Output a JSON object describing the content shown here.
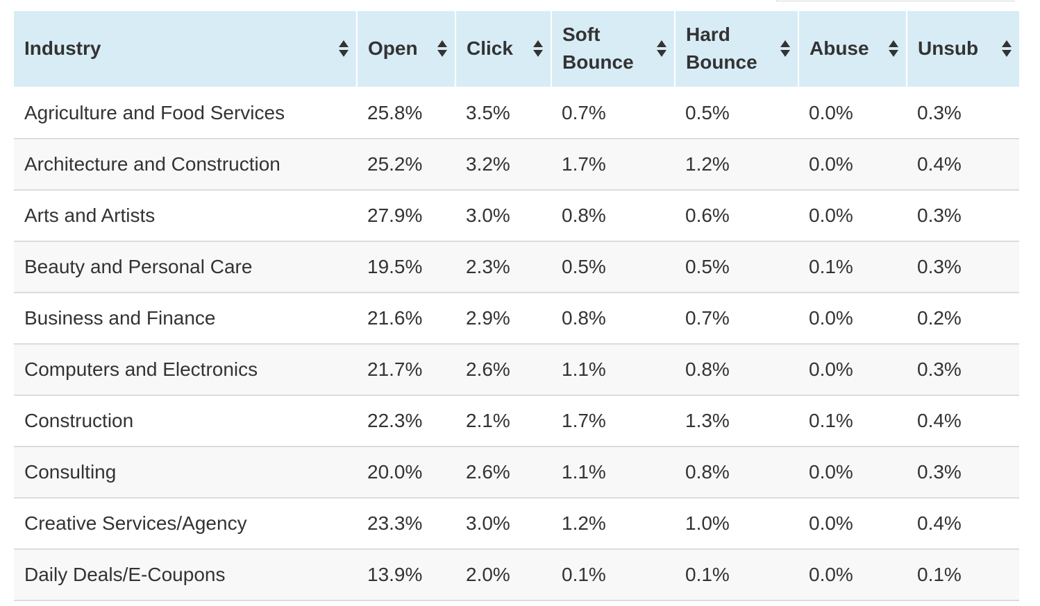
{
  "table": {
    "columns": [
      {
        "key": "industry",
        "label": "Industry"
      },
      {
        "key": "open",
        "label": "Open"
      },
      {
        "key": "click",
        "label": "Click"
      },
      {
        "key": "soft_bounce",
        "label": "Soft Bounce"
      },
      {
        "key": "hard_bounce",
        "label": "Hard Bounce"
      },
      {
        "key": "abuse",
        "label": "Abuse"
      },
      {
        "key": "unsub",
        "label": "Unsub"
      }
    ],
    "sort_icon": "sort-up-down-icon",
    "rows": [
      [
        "Agriculture and Food Services",
        "25.8%",
        "3.5%",
        "0.7%",
        "0.5%",
        "0.0%",
        "0.3%"
      ],
      [
        "Architecture and Construction",
        "25.2%",
        "3.2%",
        "1.7%",
        "1.2%",
        "0.0%",
        "0.4%"
      ],
      [
        "Arts and Artists",
        "27.9%",
        "3.0%",
        "0.8%",
        "0.6%",
        "0.0%",
        "0.3%"
      ],
      [
        "Beauty and Personal Care",
        "19.5%",
        "2.3%",
        "0.5%",
        "0.5%",
        "0.1%",
        "0.3%"
      ],
      [
        "Business and Finance",
        "21.6%",
        "2.9%",
        "0.8%",
        "0.7%",
        "0.0%",
        "0.2%"
      ],
      [
        "Computers and Electronics",
        "21.7%",
        "2.6%",
        "1.1%",
        "0.8%",
        "0.0%",
        "0.3%"
      ],
      [
        "Construction",
        "22.3%",
        "2.1%",
        "1.7%",
        "1.3%",
        "0.1%",
        "0.4%"
      ],
      [
        "Consulting",
        "20.0%",
        "2.6%",
        "1.1%",
        "0.8%",
        "0.0%",
        "0.3%"
      ],
      [
        "Creative Services/Agency",
        "23.3%",
        "3.0%",
        "1.2%",
        "1.0%",
        "0.0%",
        "0.4%"
      ],
      [
        "Daily Deals/E-Coupons",
        "13.9%",
        "2.0%",
        "0.1%",
        "0.1%",
        "0.0%",
        "0.1%"
      ]
    ]
  },
  "colors": {
    "header_bg": "#d8ecf6",
    "text": "#333333",
    "row_alt": "#f8f8f8",
    "divider": "#dcdcdc"
  }
}
